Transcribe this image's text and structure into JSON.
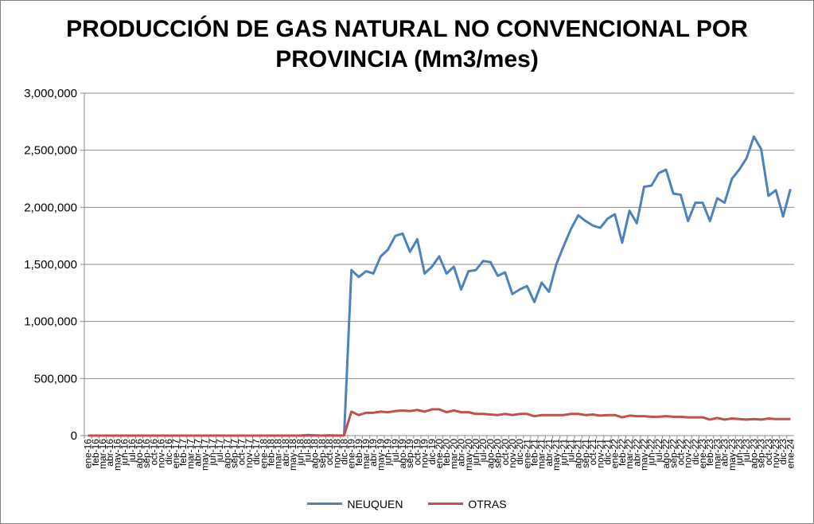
{
  "chart_data": {
    "type": "line",
    "title_line1": "PRODUCCIÓN DE GAS NATURAL NO CONVENCIONAL POR",
    "title_line2": "PROVINCIA (Mm3/mes)",
    "xlabel": "",
    "ylabel": "",
    "ylim": [
      0,
      3000000
    ],
    "yticks": [
      0,
      500000,
      1000000,
      1500000,
      2000000,
      2500000,
      3000000
    ],
    "ytick_labels": [
      "0",
      "500,000",
      "1,000,000",
      "1,500,000",
      "2,000,000",
      "2,500,000",
      "3,000,000"
    ],
    "grid": "horizontal",
    "legend_position": "bottom",
    "x": [
      "ene-16",
      "feb-16",
      "mar-16",
      "abr-16",
      "may-16",
      "jun-16",
      "jul-16",
      "ago-16",
      "sep-16",
      "oct-16",
      "nov-16",
      "dic-16",
      "ene-17",
      "feb-17",
      "mar-17",
      "abr-17",
      "may-17",
      "jun-17",
      "jul-17",
      "ago-17",
      "sep-17",
      "oct-17",
      "nov-17",
      "dic-17",
      "ene-18",
      "feb-18",
      "mar-18",
      "abr-18",
      "may-18",
      "jun-18",
      "jul-18",
      "ago-18",
      "sep-18",
      "oct-18",
      "nov-18",
      "dic-18",
      "ene-19",
      "feb-19",
      "mar-19",
      "abr-19",
      "may-19",
      "jun-19",
      "jul-19",
      "ago-19",
      "sep-19",
      "oct-19",
      "nov-19",
      "dic-19",
      "ene-20",
      "feb-20",
      "mar-20",
      "abr-20",
      "may-20",
      "jun-20",
      "jul-20",
      "ago-20",
      "sep-20",
      "oct-20",
      "nov-20",
      "dic-20",
      "ene-21",
      "feb-21",
      "mar-21",
      "abr-21",
      "may-21",
      "jun-21",
      "jul-21",
      "ago-21",
      "sep-21",
      "oct-21",
      "nov-21",
      "dic-21",
      "ene-22",
      "feb-22",
      "mar-22",
      "abr-22",
      "may-22",
      "jun-22",
      "jul-22",
      "ago-22",
      "sep-22",
      "oct-22",
      "nov-22",
      "dic-22",
      "ene-23",
      "feb-23",
      "mar-23",
      "abr-23",
      "may-23",
      "jun-23",
      "jul-23",
      "ago-23",
      "sep-23",
      "oct-23",
      "nov-23",
      "dic-23",
      "ene-24"
    ],
    "series": [
      {
        "name": "NEUQUEN",
        "color": "#4f81bd",
        "values": [
          0,
          0,
          0,
          0,
          0,
          0,
          0,
          0,
          0,
          0,
          0,
          0,
          0,
          0,
          0,
          0,
          0,
          0,
          0,
          0,
          0,
          0,
          0,
          0,
          0,
          0,
          0,
          0,
          0,
          0,
          5000,
          2000,
          0,
          3000,
          0,
          2000,
          1450000,
          1390000,
          1440000,
          1420000,
          1570000,
          1630000,
          1750000,
          1770000,
          1610000,
          1720000,
          1420000,
          1480000,
          1570000,
          1420000,
          1480000,
          1280000,
          1440000,
          1450000,
          1530000,
          1520000,
          1400000,
          1430000,
          1240000,
          1280000,
          1310000,
          1170000,
          1340000,
          1260000,
          1500000,
          1660000,
          1810000,
          1930000,
          1880000,
          1840000,
          1820000,
          1900000,
          1940000,
          1690000,
          1970000,
          1860000,
          2180000,
          2190000,
          2300000,
          2330000,
          2120000,
          2110000,
          1880000,
          2040000,
          2040000,
          1880000,
          2080000,
          2040000,
          2250000,
          2330000,
          2430000,
          2620000,
          2510000,
          2100000,
          2150000,
          1920000,
          2160000
        ]
      },
      {
        "name": "OTRAS",
        "color": "#c0504d",
        "values": [
          0,
          0,
          0,
          0,
          0,
          0,
          0,
          0,
          0,
          0,
          0,
          0,
          0,
          0,
          0,
          0,
          0,
          0,
          0,
          0,
          0,
          0,
          0,
          0,
          0,
          0,
          0,
          0,
          0,
          0,
          2000,
          1000,
          0,
          1000,
          0,
          1000,
          210000,
          180000,
          200000,
          200000,
          210000,
          205000,
          215000,
          220000,
          215000,
          225000,
          210000,
          230000,
          230000,
          205000,
          220000,
          205000,
          205000,
          190000,
          190000,
          185000,
          180000,
          190000,
          180000,
          190000,
          190000,
          170000,
          180000,
          180000,
          180000,
          180000,
          190000,
          190000,
          180000,
          185000,
          175000,
          180000,
          180000,
          160000,
          175000,
          170000,
          170000,
          165000,
          165000,
          170000,
          165000,
          165000,
          160000,
          160000,
          160000,
          140000,
          155000,
          140000,
          150000,
          145000,
          140000,
          145000,
          140000,
          150000,
          145000,
          145000,
          145000
        ]
      }
    ]
  }
}
